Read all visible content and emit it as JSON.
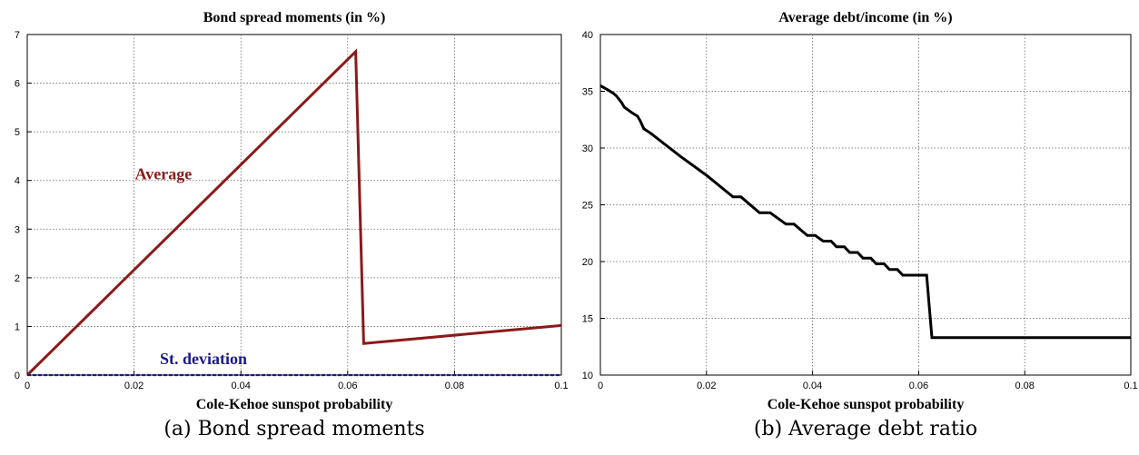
{
  "chart_data": [
    {
      "type": "line",
      "title": "Bond spread moments (in %)",
      "xlabel": "Cole-Kehoe sunspot probability",
      "ylabel": "",
      "xlim": [
        0,
        0.1
      ],
      "ylim": [
        0,
        7
      ],
      "x_ticks": [
        "0",
        "0.02",
        "0.04",
        "0.06",
        "0.08",
        "0.1"
      ],
      "y_ticks": [
        "0",
        "1",
        "2",
        "3",
        "4",
        "5",
        "6",
        "7"
      ],
      "grid": true,
      "series": [
        {
          "name": "Average",
          "color": "#8b1a1a",
          "points": [
            [
              0,
              0
            ],
            [
              0.0615,
              6.65
            ],
            [
              0.063,
              0.65
            ],
            [
              0.1,
              1.02
            ]
          ]
        },
        {
          "name": "St. deviation",
          "color": "#1a1a8b",
          "points": [
            [
              0,
              0
            ],
            [
              0.1,
              0
            ]
          ]
        }
      ],
      "annotations": [
        {
          "text": "Average",
          "series": "Average",
          "x": 0.0255,
          "y": 4.02
        },
        {
          "text": "St. deviation",
          "series": "St. deviation",
          "x": 0.033,
          "y": 0.22
        }
      ],
      "caption": "(a) Bond spread moments"
    },
    {
      "type": "line",
      "title": "Average debt/income (in %)",
      "xlabel": "Cole-Kehoe sunspot probability",
      "ylabel": "",
      "xlim": [
        0,
        0.1
      ],
      "ylim": [
        10,
        40
      ],
      "x_ticks": [
        "0",
        "0.02",
        "0.04",
        "0.06",
        "0.08",
        "0.1"
      ],
      "y_ticks": [
        "10",
        "15",
        "20",
        "25",
        "30",
        "35",
        "40"
      ],
      "grid": true,
      "series": [
        {
          "name": "",
          "color": "#000000",
          "points": [
            [
              0,
              35.5
            ],
            [
              0.0015,
              35.1
            ],
            [
              0.0025,
              34.8
            ],
            [
              0.003,
              34.6
            ],
            [
              0.004,
              34.0
            ],
            [
              0.0045,
              33.6
            ],
            [
              0.006,
              33.1
            ],
            [
              0.007,
              32.8
            ],
            [
              0.0075,
              32.4
            ],
            [
              0.0082,
              31.7
            ],
            [
              0.0095,
              31.3
            ],
            [
              0.015,
              29.3
            ],
            [
              0.02,
              27.6
            ],
            [
              0.025,
              25.7
            ],
            [
              0.0265,
              25.7
            ],
            [
              0.03,
              24.3
            ],
            [
              0.032,
              24.3
            ],
            [
              0.035,
              23.3
            ],
            [
              0.0365,
              23.3
            ],
            [
              0.039,
              22.3
            ],
            [
              0.0405,
              22.3
            ],
            [
              0.042,
              21.8
            ],
            [
              0.0435,
              21.8
            ],
            [
              0.0445,
              21.3
            ],
            [
              0.046,
              21.3
            ],
            [
              0.047,
              20.8
            ],
            [
              0.0485,
              20.8
            ],
            [
              0.0495,
              20.3
            ],
            [
              0.051,
              20.3
            ],
            [
              0.052,
              19.8
            ],
            [
              0.0535,
              19.8
            ],
            [
              0.0545,
              19.3
            ],
            [
              0.056,
              19.3
            ],
            [
              0.057,
              18.8
            ],
            [
              0.0585,
              18.8
            ],
            [
              0.0615,
              18.8
            ],
            [
              0.0625,
              13.3
            ],
            [
              0.1,
              13.3
            ]
          ]
        }
      ],
      "caption": "(b) Average debt ratio"
    }
  ]
}
